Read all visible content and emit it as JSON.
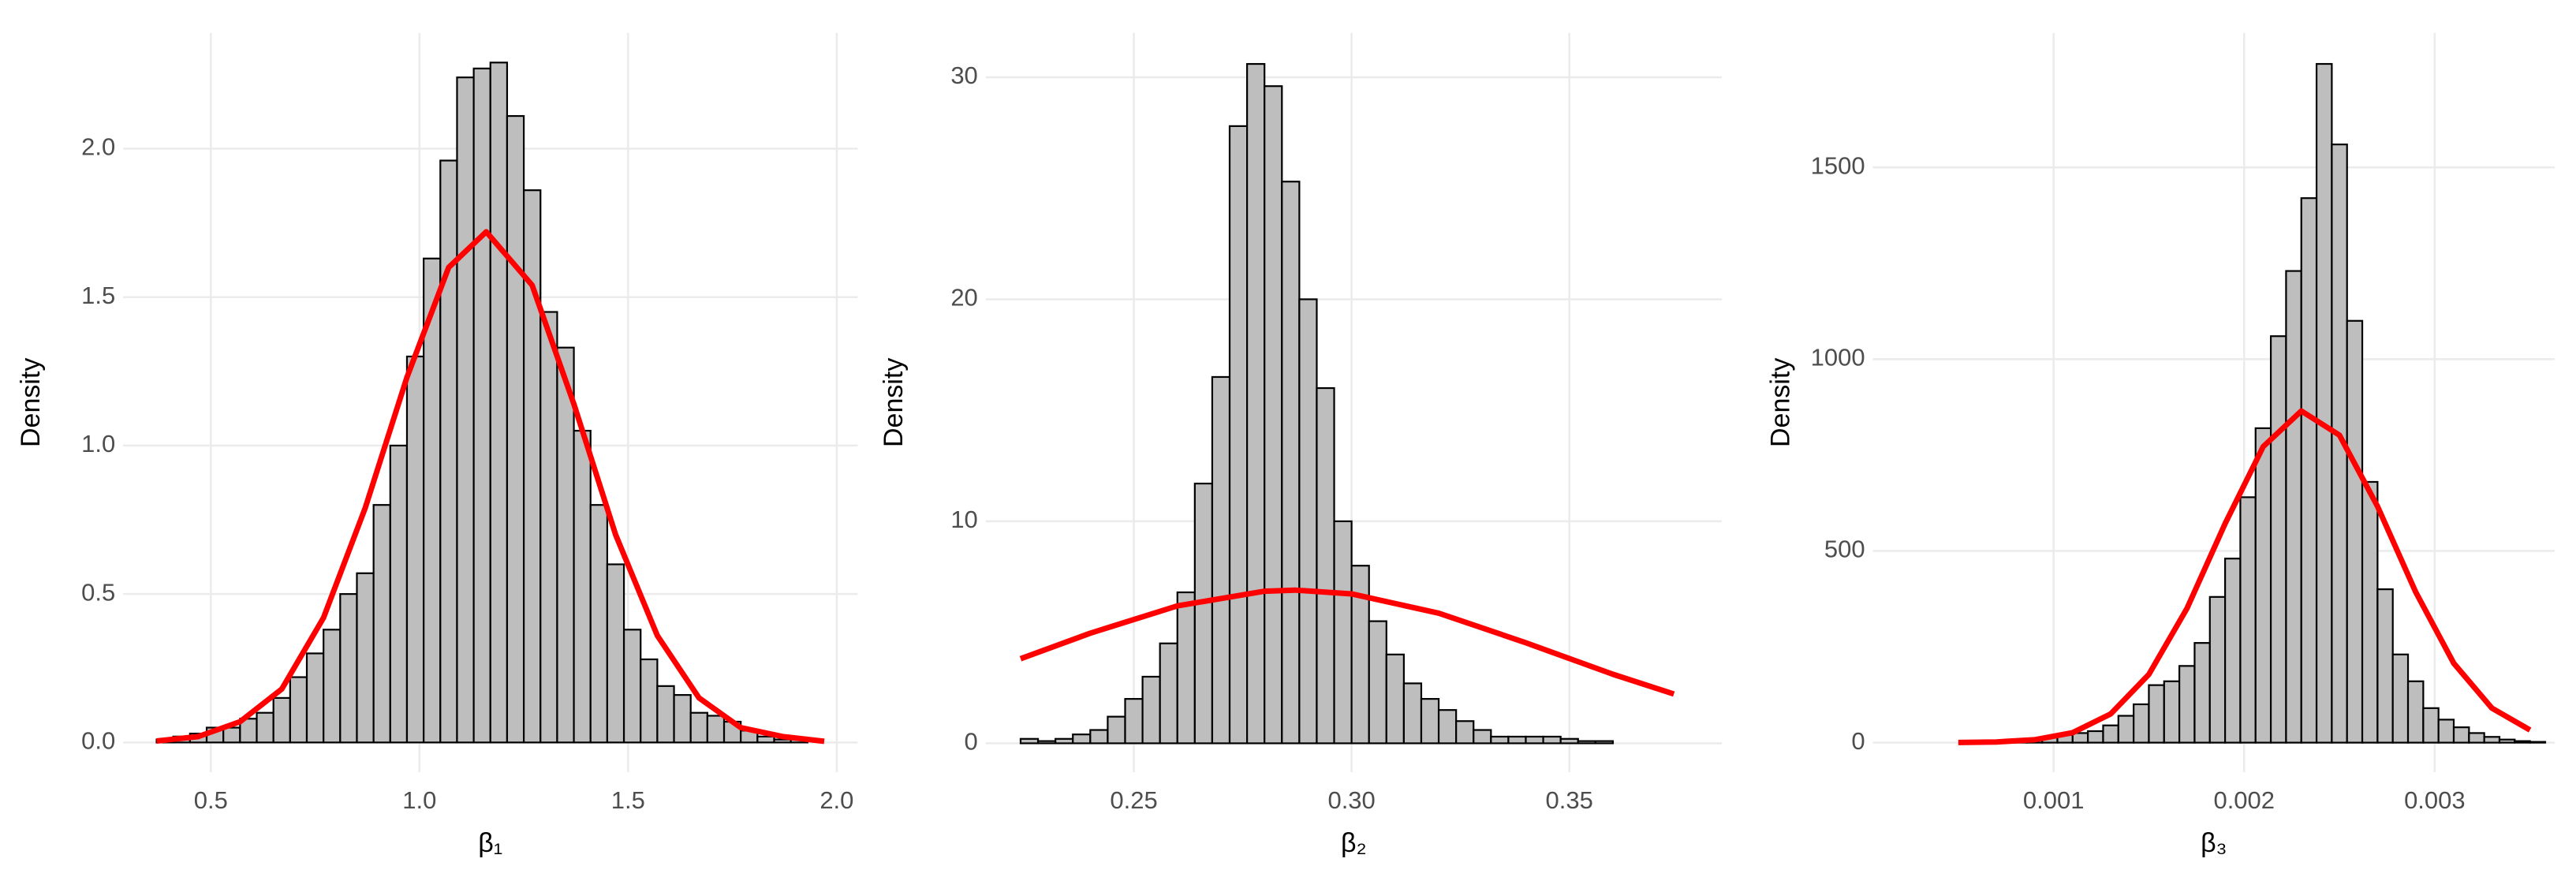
{
  "chart_data": [
    {
      "type": "histogram",
      "x_label": "β₁",
      "y_label": "Density",
      "xlim": [
        0.29,
        2.05
      ],
      "ylim": [
        -0.1,
        2.39
      ],
      "xticks": [
        0.5,
        {
          "value": 1.0,
          "label": "1.0"
        },
        1.5,
        {
          "value": 2.0,
          "label": "2.0"
        }
      ],
      "yticks": [
        {
          "value": 0.0,
          "label": "0.0"
        },
        0.5,
        {
          "value": 1.0,
          "label": "1.0"
        },
        1.5,
        {
          "value": 2.0,
          "label": "2.0"
        }
      ],
      "grid": true,
      "color": "#bebebe",
      "edge_color": "#000000",
      "bins": [
        0.37,
        0.41,
        0.45,
        0.49,
        0.53,
        0.57,
        0.61,
        0.65,
        0.69,
        0.73,
        0.77,
        0.81,
        0.85,
        0.89,
        0.93,
        0.97,
        1.01,
        1.05,
        1.09,
        1.13,
        1.17,
        1.21,
        1.25,
        1.29,
        1.33,
        1.37,
        1.41,
        1.45,
        1.49,
        1.53,
        1.57,
        1.61,
        1.65,
        1.69,
        1.73,
        1.77,
        1.81,
        1.85,
        1.89,
        1.93,
        1.97
      ],
      "values": [
        0.01,
        0.02,
        0.03,
        0.05,
        0.05,
        0.08,
        0.1,
        0.15,
        0.22,
        0.3,
        0.38,
        0.5,
        0.57,
        0.8,
        1.0,
        1.3,
        1.63,
        1.96,
        2.24,
        2.27,
        2.29,
        2.11,
        1.86,
        1.45,
        1.33,
        1.05,
        0.8,
        0.6,
        0.38,
        0.28,
        0.19,
        0.16,
        0.1,
        0.09,
        0.07,
        0.04,
        0.02,
        0.01,
        0.01,
        0.0
      ],
      "density_curve": {
        "color": "#ff0000",
        "x": [
          0.37,
          0.47,
          0.57,
          0.67,
          0.77,
          0.87,
          0.97,
          1.07,
          1.16,
          1.27,
          1.37,
          1.47,
          1.57,
          1.67,
          1.77,
          1.87,
          1.97
        ],
        "y": [
          0.005,
          0.02,
          0.07,
          0.18,
          0.42,
          0.79,
          1.23,
          1.6,
          1.72,
          1.54,
          1.14,
          0.7,
          0.36,
          0.15,
          0.05,
          0.02,
          0.004
        ]
      }
    },
    {
      "type": "histogram",
      "x_label": "β₂",
      "y_label": "Density",
      "xlim": [
        0.216,
        0.385
      ],
      "ylim": [
        -1.3,
        32
      ],
      "xticks": [
        0.25,
        {
          "value": 0.3,
          "label": "0.30"
        },
        0.35
      ],
      "yticks": [
        0,
        10,
        20,
        30
      ],
      "grid": true,
      "color": "#bebebe",
      "edge_color": "#000000",
      "bins": [
        0.224,
        0.228,
        0.232,
        0.236,
        0.24,
        0.244,
        0.248,
        0.252,
        0.256,
        0.26,
        0.264,
        0.268,
        0.272,
        0.276,
        0.28,
        0.284,
        0.288,
        0.292,
        0.296,
        0.3,
        0.304,
        0.308,
        0.312,
        0.316,
        0.32,
        0.324,
        0.328,
        0.332,
        0.336,
        0.34,
        0.344,
        0.348,
        0.352,
        0.356,
        0.36
      ],
      "values": [
        0.2,
        0.1,
        0.2,
        0.4,
        0.6,
        1.2,
        2.0,
        3.0,
        4.5,
        6.8,
        11.7,
        16.5,
        27.8,
        30.6,
        29.6,
        25.3,
        20.0,
        16.0,
        10.0,
        8.0,
        5.5,
        4.0,
        2.7,
        2.0,
        1.5,
        1.0,
        0.6,
        0.3,
        0.3,
        0.3,
        0.3,
        0.2,
        0.1,
        0.1
      ],
      "density_curve": {
        "color": "#ff0000",
        "x": [
          0.224,
          0.24,
          0.26,
          0.28,
          0.287,
          0.3,
          0.32,
          0.34,
          0.36,
          0.374
        ],
        "y": [
          3.81,
          4.96,
          6.19,
          6.85,
          6.9,
          6.73,
          5.86,
          4.53,
          3.11,
          2.22
        ]
      }
    },
    {
      "type": "histogram",
      "x_label": "β₃",
      "y_label": "Density",
      "xlim": [
        5.2e-05,
        0.00363
      ],
      "ylim": [
        -77,
        1851
      ],
      "xticks": [
        0.001,
        0.002,
        0.003
      ],
      "yticks": [
        0,
        500,
        1000,
        1500
      ],
      "grid": true,
      "color": "#bebebe",
      "edge_color": "#000000",
      "bins": [
        0.00054,
        0.00062,
        0.0007,
        0.00078,
        0.00086,
        0.00094,
        0.00102,
        0.0011,
        0.00118,
        0.00126,
        0.00134,
        0.00142,
        0.0015,
        0.00158,
        0.00166,
        0.00174,
        0.00182,
        0.0019,
        0.00198,
        0.00206,
        0.00214,
        0.00222,
        0.0023,
        0.00238,
        0.00246,
        0.00254,
        0.00262,
        0.0027,
        0.00278,
        0.00286,
        0.00294,
        0.00302,
        0.0031,
        0.00318,
        0.00326,
        0.00334,
        0.00342,
        0.0035,
        0.00358
      ],
      "values": [
        2,
        3,
        5,
        8,
        10,
        15,
        20,
        25,
        30,
        45,
        70,
        100,
        150,
        160,
        200,
        260,
        380,
        480,
        640,
        820,
        1060,
        1230,
        1420,
        1770,
        1560,
        1100,
        680,
        400,
        230,
        160,
        90,
        60,
        40,
        25,
        15,
        8,
        4,
        2
      ],
      "density_curve": {
        "color": "#ff0000",
        "x": [
          0.0005,
          0.0007,
          0.0009,
          0.0011,
          0.0013,
          0.0015,
          0.0017,
          0.0019,
          0.0021,
          0.0023,
          0.0025,
          0.0027,
          0.0029,
          0.0031,
          0.0033,
          0.0035
        ],
        "y": [
          0.35,
          1.8,
          7.5,
          26,
          75,
          178,
          350,
          571,
          772,
          865,
          802,
          616,
          393,
          207,
          90,
          33
        ]
      }
    }
  ]
}
